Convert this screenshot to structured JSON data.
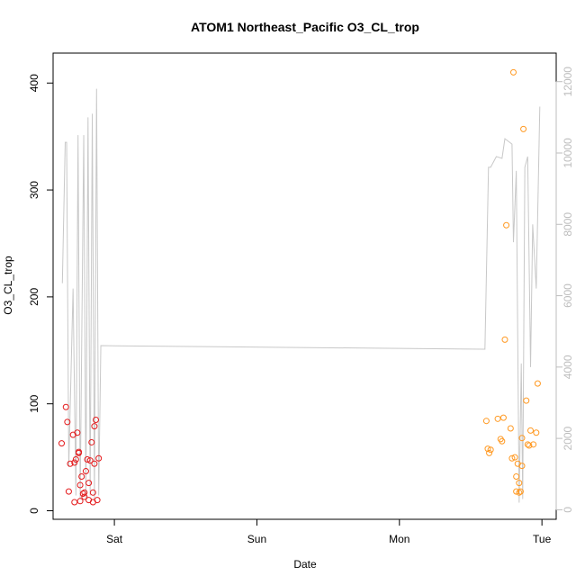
{
  "chart_data": {
    "type": "scatter",
    "title": "ATOM1 Northeast_Pacific O3_CL_trop",
    "xlabel": "Date",
    "ylabel": "O3_CL_trop",
    "x_unit": "days",
    "x_ticks": [
      {
        "value": 1,
        "label": "Sat"
      },
      {
        "value": 2,
        "label": "Sun"
      },
      {
        "value": 3,
        "label": "Mon"
      },
      {
        "value": 4,
        "label": "Tue"
      }
    ],
    "xlim": [
      0.57,
      4.1
    ],
    "ylim": [
      -8,
      428
    ],
    "y_ticks": [
      0,
      100,
      200,
      300,
      400
    ],
    "y2lim": [
      -267,
      12800
    ],
    "y2_ticks": [
      0,
      2000,
      4000,
      6000,
      8000,
      10000,
      12000
    ],
    "y2_color": "#bdbdbd",
    "grid": false,
    "legend": "none",
    "series": [
      {
        "color": "#e41a1c",
        "marker": "circle-open",
        "points": [
          [
            0.63,
            63
          ],
          [
            0.66,
            97
          ],
          [
            0.67,
            83
          ],
          [
            0.68,
            18
          ],
          [
            0.69,
            44
          ],
          [
            0.71,
            71
          ],
          [
            0.72,
            45
          ],
          [
            0.72,
            8
          ],
          [
            0.73,
            48
          ],
          [
            0.74,
            73
          ],
          [
            0.75,
            54
          ],
          [
            0.75,
            55
          ],
          [
            0.76,
            9
          ],
          [
            0.76,
            24
          ],
          [
            0.77,
            32
          ],
          [
            0.78,
            16
          ],
          [
            0.79,
            17
          ],
          [
            0.79,
            13
          ],
          [
            0.8,
            37
          ],
          [
            0.81,
            48
          ],
          [
            0.82,
            26
          ],
          [
            0.82,
            10
          ],
          [
            0.83,
            47
          ],
          [
            0.84,
            64
          ],
          [
            0.85,
            17
          ],
          [
            0.85,
            8
          ],
          [
            0.86,
            44
          ],
          [
            0.86,
            79
          ],
          [
            0.87,
            85
          ],
          [
            0.88,
            10
          ],
          [
            0.89,
            49
          ]
        ]
      },
      {
        "color": "#ff9922",
        "marker": "circle-open",
        "points": [
          [
            3.61,
            84
          ],
          [
            3.62,
            58
          ],
          [
            3.63,
            54
          ],
          [
            3.64,
            57
          ],
          [
            3.69,
            86
          ],
          [
            3.71,
            67
          ],
          [
            3.72,
            65
          ],
          [
            3.73,
            87
          ],
          [
            3.74,
            160
          ],
          [
            3.75,
            267
          ],
          [
            3.78,
            77
          ],
          [
            3.79,
            49
          ],
          [
            3.8,
            410
          ],
          [
            3.81,
            50
          ],
          [
            3.82,
            32
          ],
          [
            3.82,
            18
          ],
          [
            3.83,
            44
          ],
          [
            3.84,
            26
          ],
          [
            3.84,
            17
          ],
          [
            3.85,
            18
          ],
          [
            3.86,
            42
          ],
          [
            3.86,
            68
          ],
          [
            3.87,
            357
          ],
          [
            3.89,
            103
          ],
          [
            3.9,
            62
          ],
          [
            3.91,
            61
          ],
          [
            3.92,
            75
          ],
          [
            3.94,
            62
          ],
          [
            3.96,
            73
          ],
          [
            3.97,
            119
          ]
        ]
      }
    ],
    "secondary_line": {
      "color": "#c8c8c8",
      "points": [
        [
          0.635,
          6350
        ],
        [
          0.655,
          10300
        ],
        [
          0.665,
          10300
        ],
        [
          0.68,
          1200
        ],
        [
          0.71,
          6200
        ],
        [
          0.73,
          400
        ],
        [
          0.745,
          10500
        ],
        [
          0.76,
          300
        ],
        [
          0.785,
          10500
        ],
        [
          0.8,
          300
        ],
        [
          0.815,
          11000
        ],
        [
          0.83,
          400
        ],
        [
          0.845,
          11100
        ],
        [
          0.86,
          300
        ],
        [
          0.875,
          11800
        ],
        [
          0.89,
          400
        ],
        [
          0.905,
          4600
        ],
        [
          3.6,
          4500
        ],
        [
          3.625,
          9600
        ],
        [
          3.64,
          9600
        ],
        [
          3.68,
          9900
        ],
        [
          3.72,
          9850
        ],
        [
          3.74,
          10400
        ],
        [
          3.79,
          10250
        ],
        [
          3.8,
          7500
        ],
        [
          3.82,
          9500
        ],
        [
          3.84,
          200
        ],
        [
          3.855,
          4100
        ],
        [
          3.865,
          300
        ],
        [
          3.88,
          9600
        ],
        [
          3.9,
          9900
        ],
        [
          3.92,
          4000
        ],
        [
          3.935,
          8000
        ],
        [
          3.96,
          6200
        ],
        [
          3.985,
          11300
        ]
      ]
    }
  }
}
